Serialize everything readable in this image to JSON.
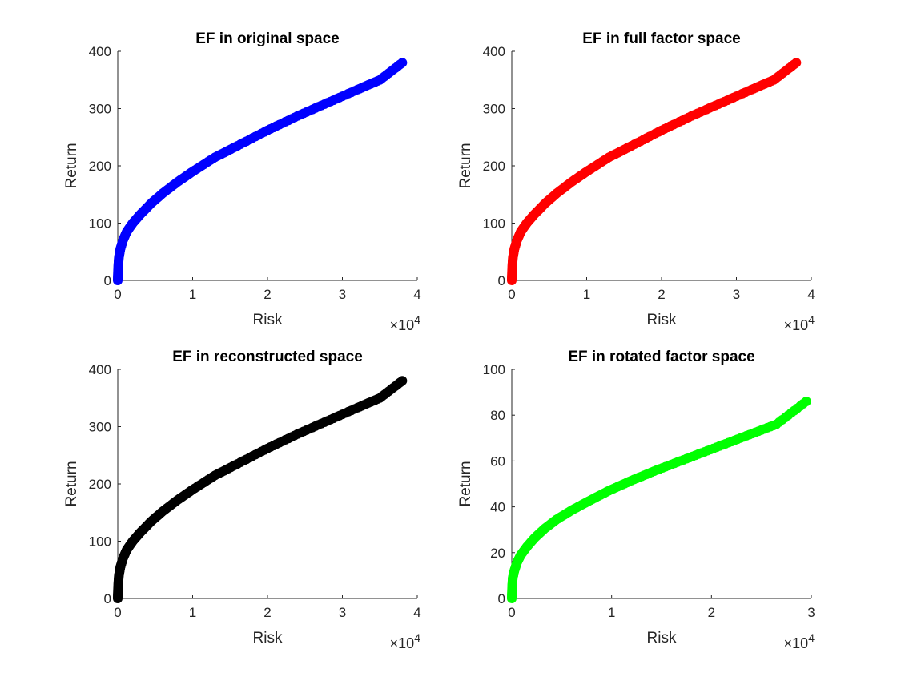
{
  "chart_data": [
    {
      "type": "scatter",
      "title": "EF in original space",
      "xlabel": "Risk",
      "ylabel": "Return",
      "x_multiplier": "×10",
      "x_exponent": "4",
      "xlim": [
        0,
        40000
      ],
      "ylim": [
        0,
        400
      ],
      "xticks": [
        0,
        10000,
        20000,
        30000,
        40000
      ],
      "xtick_labels": [
        "0",
        "1",
        "2",
        "3",
        "4"
      ],
      "yticks": [
        0,
        100,
        200,
        300,
        400
      ],
      "ytick_labels": [
        "0",
        "100",
        "200",
        "300",
        "400"
      ],
      "grid": false,
      "series": [
        {
          "color": "#0000ff",
          "x": [
            0,
            50,
            150,
            350,
            700,
            1200,
            2000,
            3000,
            4500,
            6000,
            8000,
            10000,
            13000,
            16000,
            20000,
            24000,
            28000,
            32000,
            35000,
            38000
          ],
          "y": [
            0,
            20,
            40,
            55,
            70,
            85,
            100,
            115,
            135,
            152,
            172,
            190,
            215,
            235,
            262,
            287,
            310,
            333,
            350,
            380
          ]
        }
      ]
    },
    {
      "type": "scatter",
      "title": "EF in full factor space",
      "xlabel": "Risk",
      "ylabel": "Return",
      "x_multiplier": "×10",
      "x_exponent": "4",
      "xlim": [
        0,
        40000
      ],
      "ylim": [
        0,
        400
      ],
      "xticks": [
        0,
        10000,
        20000,
        30000,
        40000
      ],
      "xtick_labels": [
        "0",
        "1",
        "2",
        "3",
        "4"
      ],
      "yticks": [
        0,
        100,
        200,
        300,
        400
      ],
      "ytick_labels": [
        "0",
        "100",
        "200",
        "300",
        "400"
      ],
      "grid": false,
      "series": [
        {
          "color": "#ff0000",
          "x": [
            0,
            50,
            150,
            350,
            700,
            1200,
            2000,
            3000,
            4500,
            6000,
            8000,
            10000,
            13000,
            16000,
            20000,
            24000,
            28000,
            32000,
            35000,
            38000
          ],
          "y": [
            0,
            20,
            40,
            55,
            70,
            85,
            100,
            115,
            135,
            152,
            172,
            190,
            215,
            235,
            262,
            287,
            310,
            333,
            350,
            380
          ]
        }
      ]
    },
    {
      "type": "scatter",
      "title": "EF in reconstructed space",
      "xlabel": "Risk",
      "ylabel": "Return",
      "x_multiplier": "×10",
      "x_exponent": "4",
      "xlim": [
        0,
        40000
      ],
      "ylim": [
        0,
        400
      ],
      "xticks": [
        0,
        10000,
        20000,
        30000,
        40000
      ],
      "xtick_labels": [
        "0",
        "1",
        "2",
        "3",
        "4"
      ],
      "yticks": [
        0,
        100,
        200,
        300,
        400
      ],
      "ytick_labels": [
        "0",
        "100",
        "200",
        "300",
        "400"
      ],
      "grid": false,
      "series": [
        {
          "color": "#000000",
          "x": [
            0,
            50,
            150,
            350,
            700,
            1200,
            2000,
            3000,
            4500,
            6000,
            8000,
            10000,
            13000,
            16000,
            20000,
            24000,
            28000,
            32000,
            35000,
            38000
          ],
          "y": [
            0,
            20,
            40,
            55,
            70,
            85,
            100,
            115,
            135,
            152,
            172,
            190,
            215,
            235,
            262,
            287,
            310,
            333,
            350,
            380
          ]
        }
      ]
    },
    {
      "type": "scatter",
      "title": "EF in rotated factor space",
      "xlabel": "Risk",
      "ylabel": "Return",
      "x_multiplier": "×10",
      "x_exponent": "4",
      "xlim": [
        0,
        30000
      ],
      "ylim": [
        0,
        100
      ],
      "xticks": [
        0,
        10000,
        20000,
        30000
      ],
      "xtick_labels": [
        "0",
        "1",
        "2",
        "3"
      ],
      "yticks": [
        0,
        20,
        40,
        60,
        80,
        100
      ],
      "ytick_labels": [
        "0",
        "20",
        "40",
        "60",
        "80",
        "100"
      ],
      "grid": false,
      "series": [
        {
          "color": "#00ff00",
          "x": [
            0,
            40,
            100,
            250,
            500,
            900,
            1500,
            2300,
            3300,
            4500,
            6000,
            7700,
            9700,
            12000,
            14500,
            17500,
            20500,
            23500,
            26500,
            29500
          ],
          "y": [
            0,
            5,
            9,
            12,
            15.5,
            19,
            22.5,
            26.5,
            30.5,
            34.5,
            38.5,
            42.5,
            47,
            51.5,
            56,
            61,
            66,
            71,
            76,
            86
          ]
        }
      ]
    }
  ]
}
